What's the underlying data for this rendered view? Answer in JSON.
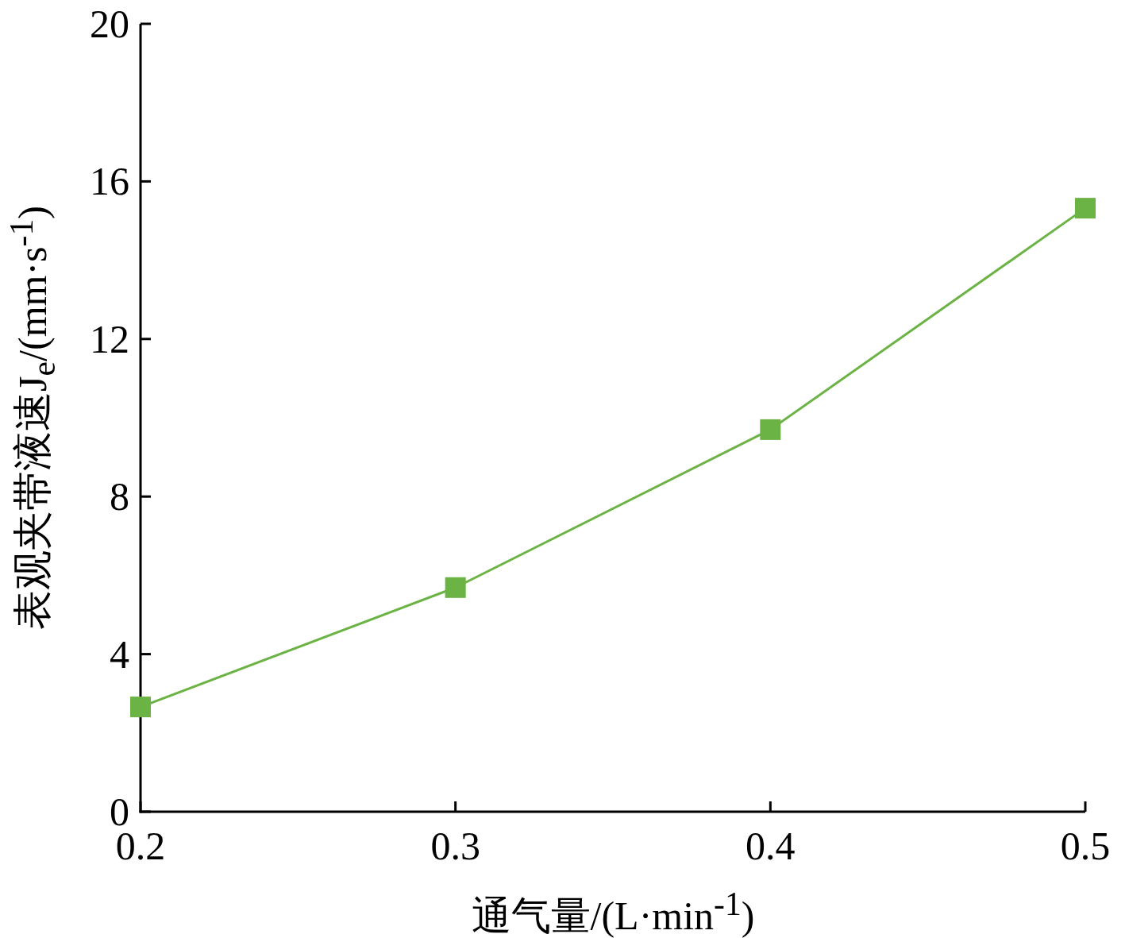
{
  "chart_data": {
    "type": "line",
    "xlabel": "通气量/(L·min$^{-1}$)",
    "ylabel": "表观夹带液速J$_{e}$/(mm·s$^{-1}$)",
    "x": [
      0.2,
      0.3,
      0.4,
      0.5
    ],
    "series": [
      {
        "color": "#6ab344",
        "values": [
          2.66,
          5.69,
          9.7,
          15.32
        ]
      }
    ],
    "xlim": [
      0.2,
      0.5
    ],
    "xticks": [
      0.2,
      0.3,
      0.4,
      0.5
    ],
    "ylim": [
      0,
      20
    ],
    "yticks": [
      0,
      4,
      8,
      12,
      16,
      20
    ],
    "marker": "square",
    "line_style": "solid",
    "grid": false
  }
}
